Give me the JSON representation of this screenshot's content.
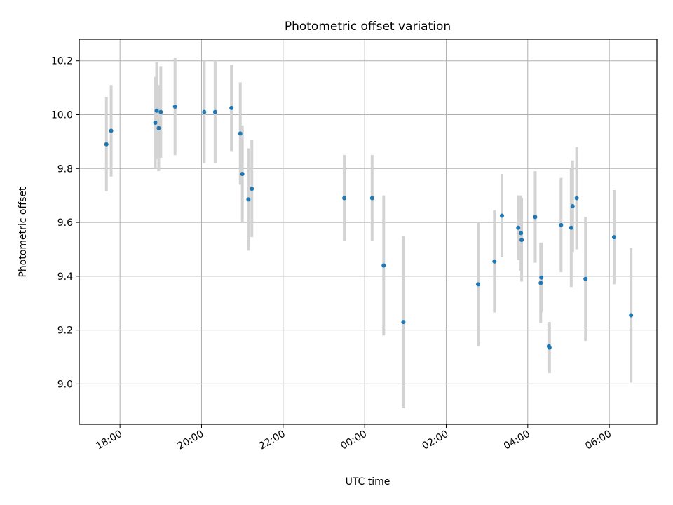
{
  "chart_data": {
    "type": "scatter",
    "title": "Photometric offset variation",
    "xlabel": "UTC time",
    "ylabel": "Photometric offset",
    "x_unit": "UTC hh:mm (hours past 24 fall on the next day)",
    "xlim": [
      "17:00",
      "31:10"
    ],
    "ylim": [
      8.85,
      10.28
    ],
    "grid": true,
    "x_ticks": [
      "18:00",
      "20:00",
      "22:00",
      "00:00",
      "02:00",
      "04:00",
      "06:00"
    ],
    "x_tick_values": [
      "18:00",
      "20:00",
      "22:00",
      "24:00",
      "26:00",
      "28:00",
      "30:00"
    ],
    "y_ticks": [
      9.0,
      9.2,
      9.4,
      9.6,
      9.8,
      10.0,
      10.2
    ],
    "colors": {
      "point": "#1f77b4",
      "errorbar": "#d3d3d3",
      "grid": "#b0b0b0"
    },
    "series": [
      {
        "points": [
          {
            "x": "17:40",
            "y": 9.89,
            "yerr": 0.175
          },
          {
            "x": "17:47",
            "y": 9.94,
            "yerr": 0.17
          },
          {
            "x": "18:52",
            "y": 9.97,
            "yerr": 0.17
          },
          {
            "x": "18:54",
            "y": 10.015,
            "yerr": 0.18
          },
          {
            "x": "18:57",
            "y": 9.95,
            "yerr": 0.16
          },
          {
            "x": "19:00",
            "y": 10.01,
            "yerr": 0.17
          },
          {
            "x": "19:21",
            "y": 10.03,
            "yerr": 0.18
          },
          {
            "x": "20:04",
            "y": 10.01,
            "yerr": 0.19
          },
          {
            "x": "20:20",
            "y": 10.01,
            "yerr": 0.19
          },
          {
            "x": "20:44",
            "y": 10.025,
            "yerr": 0.16
          },
          {
            "x": "20:57",
            "y": 9.93,
            "yerr": 0.19
          },
          {
            "x": "21:00",
            "y": 9.78,
            "yerr": 0.18
          },
          {
            "x": "21:09",
            "y": 9.685,
            "yerr": 0.19
          },
          {
            "x": "21:14",
            "y": 9.725,
            "yerr": 0.18
          },
          {
            "x": "23:30",
            "y": 9.69,
            "yerr": 0.16
          },
          {
            "x": "24:11",
            "y": 9.69,
            "yerr": 0.16
          },
          {
            "x": "24:28",
            "y": 9.44,
            "yerr": 0.26
          },
          {
            "x": "24:57",
            "y": 9.23,
            "yerr": 0.32
          },
          {
            "x": "26:47",
            "y": 9.37,
            "yerr": 0.23
          },
          {
            "x": "27:11",
            "y": 9.455,
            "yerr": 0.19
          },
          {
            "x": "27:22",
            "y": 9.625,
            "yerr": 0.155
          },
          {
            "x": "27:46",
            "y": 9.58,
            "yerr": 0.12
          },
          {
            "x": "27:50",
            "y": 9.56,
            "yerr": 0.14
          },
          {
            "x": "27:51",
            "y": 9.535,
            "yerr": 0.155
          },
          {
            "x": "28:11",
            "y": 9.62,
            "yerr": 0.17
          },
          {
            "x": "28:19",
            "y": 9.375,
            "yerr": 0.15
          },
          {
            "x": "28:20",
            "y": 9.395,
            "yerr": 0.13
          },
          {
            "x": "28:31",
            "y": 9.14,
            "yerr": 0.09
          },
          {
            "x": "28:32",
            "y": 9.135,
            "yerr": 0.095
          },
          {
            "x": "28:49",
            "y": 9.59,
            "yerr": 0.175
          },
          {
            "x": "29:04",
            "y": 9.58,
            "yerr": 0.22
          },
          {
            "x": "29:06",
            "y": 9.66,
            "yerr": 0.17
          },
          {
            "x": "29:12",
            "y": 9.69,
            "yerr": 0.19
          },
          {
            "x": "29:25",
            "y": 9.39,
            "yerr": 0.23
          },
          {
            "x": "30:07",
            "y": 9.545,
            "yerr": 0.175
          },
          {
            "x": "30:32",
            "y": 9.255,
            "yerr": 0.25
          }
        ]
      }
    ]
  }
}
